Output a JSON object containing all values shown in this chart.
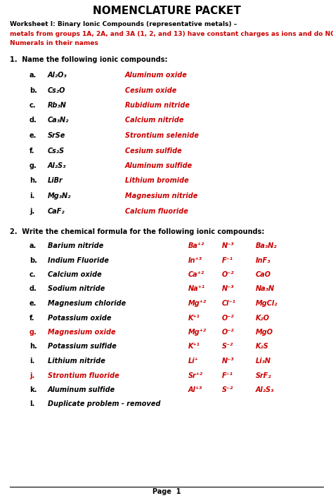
{
  "title": "NOMENCLATURE PACKET",
  "background": "#ffffff",
  "red": "#cc0000",
  "black": "#000000",
  "intro_black": "Worksheet I: Binary Ionic Compounds (representative metals) – ",
  "intro_red_line1": "metals from groups 1A, 2A, and 3A (1, 2, and 13) have constant charges as ions and do NOT get Roman",
  "intro_red_line2": "Numerals in their names",
  "section1_header": "1.  Name the following ionic compounds:",
  "section1_items": [
    {
      "letter": "a.",
      "formula": "Al₂O₃",
      "answer": "Aluminum oxide"
    },
    {
      "letter": "b.",
      "formula": "Cs₂O",
      "answer": "Cesium oxide"
    },
    {
      "letter": "c.",
      "formula": "Rb₃N",
      "answer": "Rubidium nitride"
    },
    {
      "letter": "d.",
      "formula": "Ca₃N₂",
      "answer": "Calcium nitride"
    },
    {
      "letter": "e.",
      "formula": "SrSe",
      "answer": "Strontium selenide"
    },
    {
      "letter": "f.",
      "formula": "Cs₂S",
      "answer": "Cesium sulfide"
    },
    {
      "letter": "g.",
      "formula": "Al₂S₃",
      "answer": "Aluminum sulfide"
    },
    {
      "letter": "h.",
      "formula": "LiBr",
      "answer": "Lithium bromide"
    },
    {
      "letter": "i.",
      "formula": "Mg₃N₂",
      "answer": "Magnesium nitride"
    },
    {
      "letter": "j.",
      "formula": "CaF₂",
      "answer": "Calcium fluoride"
    }
  ],
  "section2_header": "2.  Write the chemical formula for the following ionic compounds:",
  "section2_items": [
    {
      "letter": "a.",
      "name": "Barium nitride",
      "ion1": "Ba⁺²",
      "ion2": "N⁻³",
      "formula": "Ba₃N₂",
      "name_red": false
    },
    {
      "letter": "b.",
      "name": "Indium Fluoride",
      "ion1": "In⁺³",
      "ion2": "F⁻¹",
      "formula": "InF₃",
      "name_red": false
    },
    {
      "letter": "c.",
      "name": "Calcium oxide",
      "ion1": "Ca⁺²",
      "ion2": "O⁻²",
      "formula": "CaO",
      "name_red": false
    },
    {
      "letter": "d.",
      "name": "Sodium nitride",
      "ion1": "Na⁺¹",
      "ion2": "N⁻³",
      "formula": "Na₃N",
      "name_red": false
    },
    {
      "letter": "e.",
      "name": "Magnesium chloride",
      "ion1": "Mg⁺²",
      "ion2": "Cl⁻¹",
      "formula": "MgCl₂",
      "name_red": false
    },
    {
      "letter": "f.",
      "name": "Potassium oxide",
      "ion1": "K⁺¹",
      "ion2": "O⁻²",
      "formula": "K₂O",
      "name_red": false
    },
    {
      "letter": "g.",
      "name": "Magnesium oxide",
      "ion1": "Mg⁺²",
      "ion2": "O⁻²",
      "formula": "MgO",
      "name_red": true
    },
    {
      "letter": "h.",
      "name": "Potassium sulfide",
      "ion1": "K⁺¹",
      "ion2": "S⁻²",
      "formula": "K₂S",
      "name_red": false
    },
    {
      "letter": "i.",
      "name": "Lithium nitride",
      "ion1": "Li⁺",
      "ion2": "N⁻³",
      "formula": "Li₃N",
      "name_red": false
    },
    {
      "letter": "j.",
      "name": "Strontium fluoride",
      "ion1": "Sr⁺²",
      "ion2": "F⁻¹",
      "formula": "SrF₂",
      "name_red": true
    },
    {
      "letter": "k.",
      "name": "Aluminum sulfide",
      "ion1": "Al⁺³",
      "ion2": "S⁻²",
      "formula": "Al₂S₃",
      "name_red": false
    },
    {
      "letter": "l.",
      "name": "Duplicate problem - removed",
      "ion1": "",
      "ion2": "",
      "formula": "",
      "name_red": false
    }
  ],
  "page_label": "Page  1"
}
